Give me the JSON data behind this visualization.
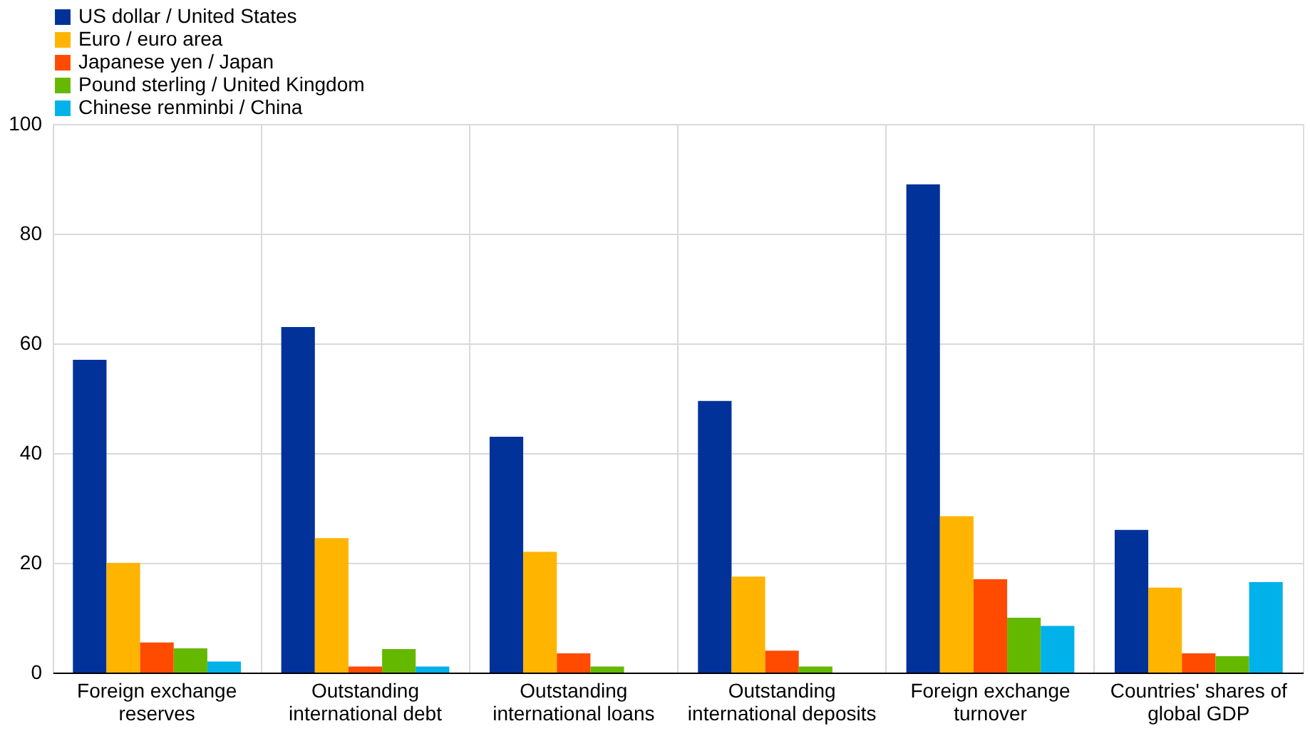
{
  "chart_data": {
    "type": "bar",
    "categories": [
      "Foreign exchange reserves",
      "Outstanding international debt",
      "Outstanding international loans",
      "Outstanding international deposits",
      "Foreign exchange turnover",
      "Countries' shares of global GDP"
    ],
    "series": [
      {
        "name": "US dollar / United States",
        "color": "#003299",
        "values": [
          57,
          63,
          43,
          49.5,
          89,
          26
        ]
      },
      {
        "name": "Euro / euro area",
        "color": "#ffb400",
        "values": [
          20,
          24.5,
          22,
          17.5,
          28.5,
          15.5
        ]
      },
      {
        "name": "Japanese  yen / Japan",
        "color": "#ff4b00",
        "values": [
          5.5,
          1.1,
          3.5,
          4,
          17,
          3.5
        ]
      },
      {
        "name": "Pound sterling / United Kingdom",
        "color": "#65b800",
        "values": [
          4.4,
          4.3,
          1.1,
          1.1,
          10,
          3
        ]
      },
      {
        "name": "Chinese renminbi / China",
        "color": "#00b1ea",
        "values": [
          2,
          1.1,
          null,
          null,
          8.5,
          16.5
        ]
      }
    ],
    "ylim": [
      0,
      100
    ],
    "yticks": [
      0,
      20,
      40,
      60,
      80,
      100
    ],
    "grid": true,
    "legend": "top left"
  }
}
